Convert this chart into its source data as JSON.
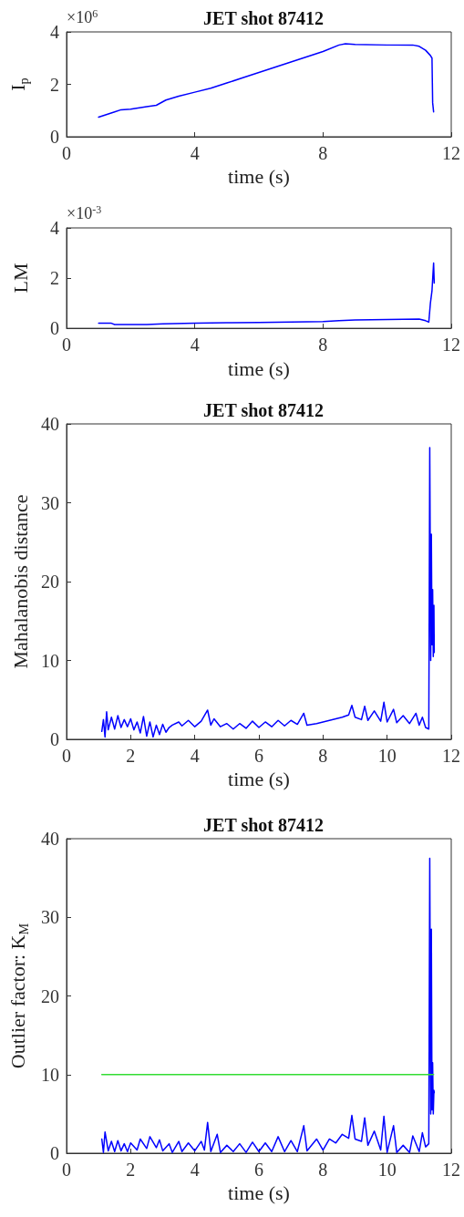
{
  "chart_data": [
    {
      "type": "line",
      "title": "JET shot 87412",
      "xlabel": "time (s)",
      "ylabel": "I$_{p}$",
      "annotations": [
        "×10$^{6}$"
      ],
      "marker": "none",
      "line_style": "solid",
      "grid": false,
      "xlim": [
        0,
        12
      ],
      "xticks": [
        0,
        4,
        8,
        12
      ],
      "ylim": [
        0,
        4
      ],
      "yticks": [
        0,
        2,
        4
      ],
      "series": [
        {
          "color": "#0000ff",
          "x": [
            1.0,
            1.5,
            1.7,
            2.0,
            2.5,
            2.8,
            3.1,
            3.5,
            4.0,
            4.5,
            5.0,
            5.5,
            6.0,
            6.5,
            7.0,
            7.5,
            8.0,
            8.5,
            8.7,
            9.0,
            10.0,
            10.8,
            11.0,
            11.2,
            11.35,
            11.4,
            11.42,
            11.45
          ],
          "values": [
            0.75,
            0.95,
            1.03,
            1.05,
            1.15,
            1.2,
            1.4,
            1.55,
            1.7,
            1.85,
            2.05,
            2.25,
            2.45,
            2.65,
            2.85,
            3.05,
            3.25,
            3.5,
            3.55,
            3.52,
            3.5,
            3.5,
            3.45,
            3.3,
            3.1,
            3.0,
            1.3,
            0.95
          ]
        }
      ]
    },
    {
      "type": "line",
      "xlabel": "time (s)",
      "ylabel": "LM",
      "annotations": [
        "×10$^{-3}$"
      ],
      "marker": "none",
      "line_style": "solid",
      "grid": false,
      "xlim": [
        0,
        12
      ],
      "xticks": [
        0,
        4,
        8,
        12
      ],
      "ylim": [
        0,
        4
      ],
      "yticks": [
        0,
        2,
        4
      ],
      "series": [
        {
          "color": "#0000ff",
          "x": [
            1.0,
            1.4,
            1.5,
            2.5,
            3.0,
            4.0,
            5.0,
            6.0,
            7.0,
            8.0,
            8.5,
            9.0,
            10.0,
            11.0,
            11.2,
            11.3,
            11.35,
            11.4,
            11.45,
            11.47
          ],
          "values": [
            0.2,
            0.2,
            0.15,
            0.15,
            0.18,
            0.2,
            0.22,
            0.23,
            0.25,
            0.27,
            0.3,
            0.33,
            0.35,
            0.37,
            0.3,
            0.25,
            1.0,
            1.5,
            2.6,
            1.8
          ]
        }
      ]
    },
    {
      "type": "line",
      "title": "JET shot 87412",
      "xlabel": "time (s)",
      "ylabel": "Mahalanobis distance",
      "marker": "none",
      "line_style": "solid",
      "grid": false,
      "xlim": [
        0,
        12
      ],
      "xticks": [
        0,
        2,
        4,
        6,
        8,
        10,
        12
      ],
      "ylim": [
        0,
        40
      ],
      "yticks": [
        0,
        10,
        20,
        30,
        40
      ],
      "series": [
        {
          "color": "#0000ff",
          "x": [
            1.1,
            1.15,
            1.2,
            1.25,
            1.3,
            1.4,
            1.5,
            1.6,
            1.7,
            1.8,
            1.9,
            2.0,
            2.1,
            2.2,
            2.3,
            2.4,
            2.5,
            2.6,
            2.7,
            2.8,
            2.9,
            3.0,
            3.1,
            3.2,
            3.3,
            3.5,
            3.6,
            3.8,
            4.0,
            4.2,
            4.4,
            4.5,
            4.6,
            4.8,
            5.0,
            5.2,
            5.4,
            5.6,
            5.8,
            6.0,
            6.2,
            6.4,
            6.6,
            6.8,
            7.0,
            7.2,
            7.4,
            7.5,
            7.8,
            8.0,
            8.2,
            8.4,
            8.6,
            8.8,
            8.9,
            9.0,
            9.2,
            9.3,
            9.4,
            9.6,
            9.8,
            9.9,
            10.0,
            10.2,
            10.3,
            10.5,
            10.7,
            10.9,
            11.0,
            11.1,
            11.2,
            11.3,
            11.33,
            11.36,
            11.38,
            11.4,
            11.42,
            11.44,
            11.46,
            11.47
          ],
          "values": [
            1.0,
            2.5,
            0.3,
            3.5,
            1.2,
            2.8,
            1.3,
            3.0,
            1.5,
            2.5,
            1.6,
            2.6,
            1.2,
            2.2,
            0.8,
            2.9,
            0.4,
            2.2,
            0.3,
            1.8,
            0.6,
            1.9,
            0.9,
            1.5,
            1.8,
            2.2,
            1.7,
            2.4,
            1.6,
            2.3,
            3.7,
            1.8,
            2.6,
            1.6,
            2.0,
            1.3,
            2.0,
            1.4,
            2.3,
            1.5,
            2.2,
            1.6,
            2.4,
            1.7,
            2.4,
            1.9,
            3.3,
            1.8,
            2.0,
            2.2,
            2.4,
            2.6,
            2.8,
            3.1,
            4.3,
            2.8,
            2.5,
            4.2,
            2.4,
            3.6,
            2.3,
            4.7,
            2.2,
            3.8,
            2.1,
            3.0,
            2.0,
            3.3,
            1.8,
            2.8,
            1.5,
            1.3,
            37,
            10,
            26,
            12,
            19,
            10.5,
            17,
            11
          ]
        }
      ]
    },
    {
      "type": "line",
      "title": "JET shot 87412",
      "xlabel": "time (s)",
      "ylabel": "Outlier factor: K$_{M}$",
      "marker": "none",
      "line_style": "solid",
      "grid": false,
      "xlim": [
        0,
        12
      ],
      "xticks": [
        0,
        2,
        4,
        6,
        8,
        10,
        12
      ],
      "ylim": [
        0,
        40
      ],
      "yticks": [
        0,
        10,
        20,
        30,
        40
      ],
      "series": [
        {
          "color": "#0000ff",
          "x": [
            1.1,
            1.15,
            1.2,
            1.3,
            1.4,
            1.5,
            1.6,
            1.7,
            1.8,
            1.9,
            2.0,
            2.2,
            2.3,
            2.5,
            2.6,
            2.8,
            2.9,
            3.0,
            3.2,
            3.3,
            3.5,
            3.6,
            3.8,
            4.0,
            4.2,
            4.3,
            4.4,
            4.5,
            4.7,
            4.8,
            5.0,
            5.2,
            5.4,
            5.6,
            5.8,
            6.0,
            6.2,
            6.4,
            6.6,
            6.8,
            7.0,
            7.2,
            7.4,
            7.5,
            7.8,
            8.0,
            8.2,
            8.4,
            8.6,
            8.8,
            8.9,
            9.0,
            9.2,
            9.3,
            9.4,
            9.6,
            9.8,
            9.9,
            10.0,
            10.2,
            10.3,
            10.5,
            10.7,
            10.8,
            11.0,
            11.1,
            11.2,
            11.3,
            11.33,
            11.36,
            11.38,
            11.4,
            11.42,
            11.44,
            11.46,
            11.47
          ],
          "values": [
            1.8,
            0.1,
            2.7,
            0.3,
            1.5,
            0.2,
            1.6,
            0.3,
            1.2,
            0.2,
            1.3,
            0.4,
            1.8,
            0.6,
            2.1,
            0.7,
            1.7,
            0.3,
            1.2,
            0.1,
            1.5,
            0.2,
            1.3,
            0.3,
            1.5,
            0.4,
            3.9,
            0.2,
            2.4,
            0.1,
            1.0,
            0.2,
            1.2,
            0.1,
            1.4,
            0.2,
            1.3,
            0.2,
            2.1,
            0.2,
            1.6,
            0.2,
            3.5,
            0.3,
            1.8,
            0.4,
            1.8,
            1.3,
            2.4,
            1.9,
            4.8,
            1.8,
            1.5,
            4.5,
            1.0,
            2.8,
            0.4,
            4.7,
            0.1,
            3.5,
            0.1,
            1.0,
            0.1,
            2.2,
            0.2,
            2.6,
            0.8,
            1.2,
            37.5,
            5,
            28.5,
            5.5,
            11.5,
            5,
            8,
            7.7
          ]
        },
        {
          "color": "#33dd33",
          "x": [
            1.1,
            11.45
          ],
          "values": [
            10,
            10
          ]
        }
      ]
    }
  ]
}
